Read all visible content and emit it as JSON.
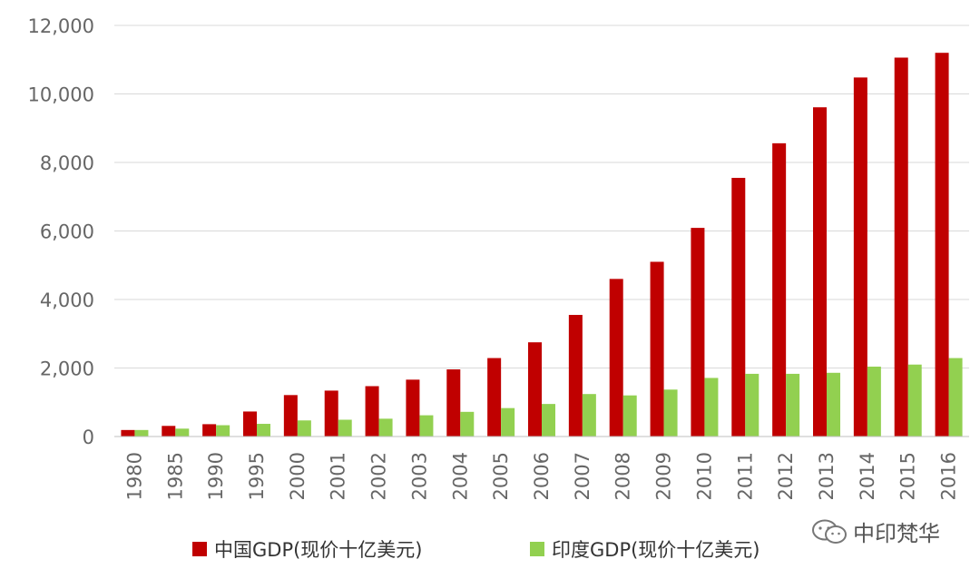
{
  "chart_data": {
    "type": "bar",
    "categories": [
      "1980",
      "1985",
      "1990",
      "1995",
      "2000",
      "2001",
      "2002",
      "2003",
      "2004",
      "2005",
      "2006",
      "2007",
      "2008",
      "2009",
      "2010",
      "2011",
      "2012",
      "2013",
      "2014",
      "2015",
      "2016"
    ],
    "series": [
      {
        "name": "中国GDP(现价十亿美元)",
        "color": "#c00000",
        "values": [
          190,
          310,
          360,
          730,
          1210,
          1340,
          1470,
          1660,
          1960,
          2290,
          2750,
          3550,
          4600,
          5100,
          6090,
          7550,
          8560,
          9610,
          10480,
          11060,
          11200
        ]
      },
      {
        "name": "印度GDP(现价十亿美元)",
        "color": "#92d050",
        "values": [
          190,
          230,
          330,
          370,
          470,
          490,
          520,
          620,
          720,
          830,
          950,
          1240,
          1200,
          1370,
          1710,
          1830,
          1830,
          1860,
          2040,
          2100,
          2290
        ]
      }
    ],
    "y_ticks": [
      "0",
      "2,000",
      "4,000",
      "6,000",
      "8,000",
      "10,000",
      "12,000"
    ],
    "ylim": [
      0,
      12000
    ],
    "grid": true,
    "legend_position": "bottom"
  },
  "watermark": {
    "text": "中印梵华",
    "icon": "wechat-icon"
  }
}
